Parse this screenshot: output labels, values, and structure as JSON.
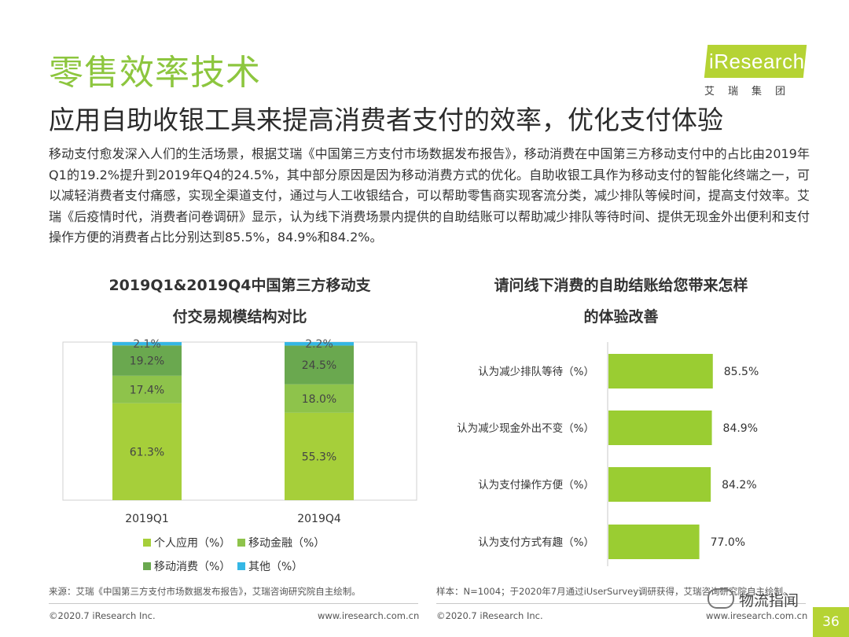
{
  "header": {
    "title": "零售效率技术",
    "subtitle": "应用自助收银工具来提高消费者支付的效率，优化支付体验",
    "body": "移动支付愈发深入人们的生活场景，根据艾瑞《中国第三方支付市场数据发布报告》，移动消费在中国第三方移动支付中的占比由2019年Q1的19.2%提升到2019年Q4的24.5%，其中部分原因是因为移动消费方式的优化。自助收银工具作为移动支付的智能化终端之一，可以减轻消费者支付痛感，实现全渠道支付，通过与人工收银结合，可以帮助零售商实现客流分类，减少排队等候时间，提高支付效率。艾瑞《后疫情时代，消费者问卷调研》显示，认为线下消费场景内提供的自助结账可以帮助减少排队等待时间、提供无现金外出便利和支付操作方便的消费者占比分别达到85.5%，84.9%和84.2%。"
  },
  "logo": {
    "name": "iResearch",
    "sub": "艾瑞集团"
  },
  "colors": {
    "accent": "#8dc63f",
    "personal": "#a6cf3a",
    "finance": "#8ec34b",
    "consumption": "#6aa84f",
    "other": "#35b7e5",
    "hbar": "#9acd32"
  },
  "chart_data": [
    {
      "type": "bar",
      "stacked": true,
      "title_line1": "2019Q1&2019Q4中国第三方移动支",
      "title_line2": "付交易规模结构对比",
      "categories": [
        "2019Q1",
        "2019Q4"
      ],
      "series": [
        {
          "name": "个人应用（%）",
          "values": [
            61.3,
            55.3
          ]
        },
        {
          "name": "移动金融（%）",
          "values": [
            17.4,
            18.0
          ]
        },
        {
          "name": "移动消费（%）",
          "values": [
            19.2,
            24.5
          ]
        },
        {
          "name": "其他（%）",
          "values": [
            2.1,
            2.2
          ]
        }
      ],
      "labels": [
        [
          "61.3%",
          "17.4%",
          "19.2%",
          "2.1%"
        ],
        [
          "55.3%",
          "18.0%",
          "24.5%",
          "2.2%"
        ]
      ],
      "ylim": [
        0,
        100
      ],
      "legend": "bottom"
    },
    {
      "type": "bar",
      "orientation": "horizontal",
      "title_line1": "请问线下消费的自助结账给您带来怎样",
      "title_line2": "的体验改善",
      "categories": [
        "认为减少排队等待（%）",
        "认为减少现金外出不变（%）",
        "认为支付操作方便（%）",
        "认为支付方式有趣（%）"
      ],
      "values": [
        85.5,
        84.9,
        84.2,
        77.0
      ],
      "labels": [
        "85.5%",
        "84.9%",
        "84.2%",
        "77.0%"
      ]
    }
  ],
  "footer": {
    "source_left": "来源：艾瑞《中国第三方支付市场数据发布报告》，艾瑞咨询研究院自主绘制。",
    "source_right": "样本：N=1004；于2020年7月通过iUserSurvey调研获得，艾瑞咨询研究院自主绘制。",
    "copyright_left": "©2020.7 iResearch Inc.",
    "url_left": "www.iresearch.com.cn",
    "copyright_right": "©2020.7 iResearch Inc.",
    "url_right": "www.iresearch.com.cn",
    "page": "36",
    "watermark": "物流指闻"
  }
}
